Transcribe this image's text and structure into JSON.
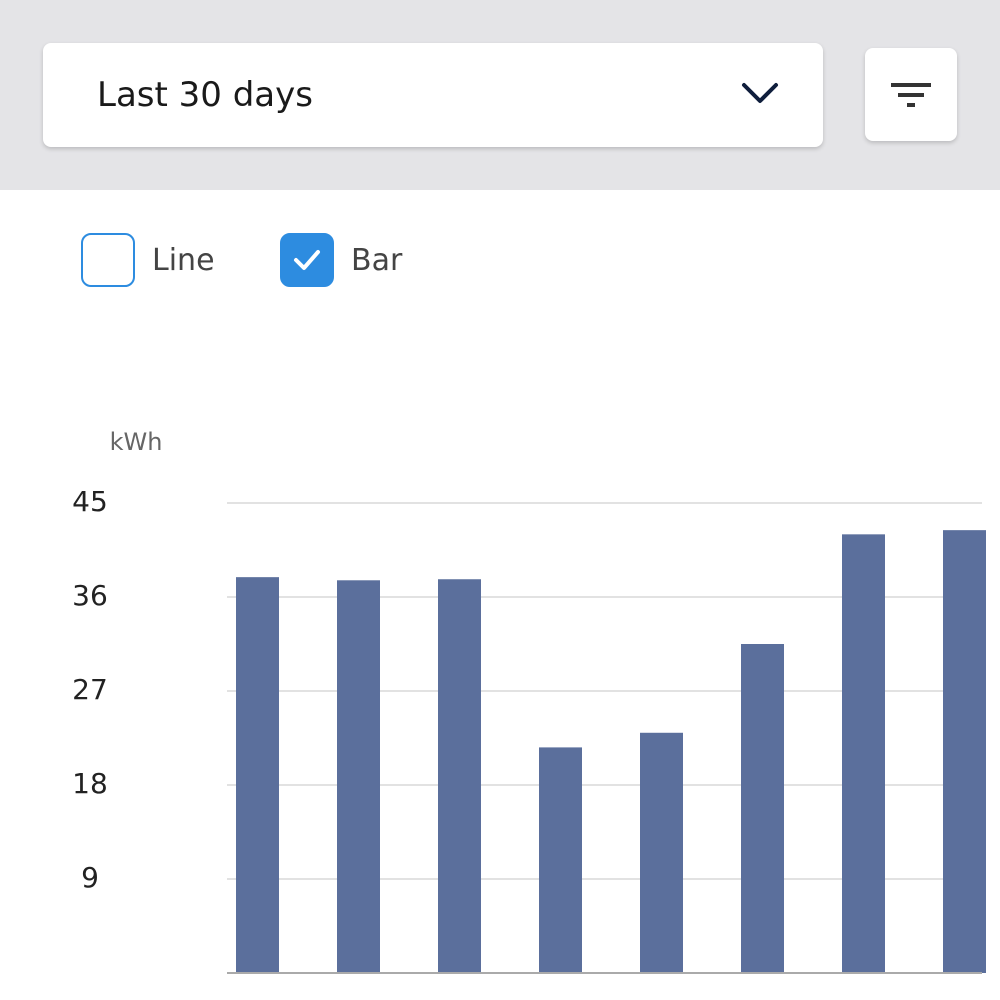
{
  "filter": {
    "range": "Last 30 days"
  },
  "toggles": [
    {
      "label": "Line",
      "checked": false
    },
    {
      "label": "Bar",
      "checked": true
    }
  ],
  "chart_data": {
    "type": "bar",
    "y_label": "kWh",
    "categories": [
      null,
      null,
      null,
      null,
      null,
      null,
      null,
      null
    ],
    "values": [
      37.9,
      37.6,
      37.7,
      21.6,
      23.0,
      31.5,
      42.0,
      42.4
    ],
    "color": "#5b6f9c",
    "ylim": [
      0,
      45
    ],
    "yticks": [
      9,
      18,
      27,
      36,
      45
    ],
    "grid": true
  }
}
